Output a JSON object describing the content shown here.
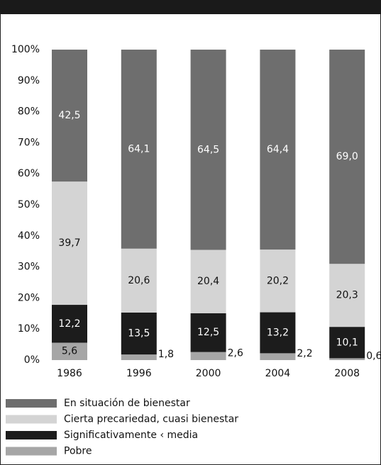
{
  "chart_data": {
    "type": "stacked_bar",
    "categories": [
      "1986",
      "1996",
      "2000",
      "2004",
      "2008"
    ],
    "series": [
      {
        "name": "Pobre",
        "color": "#a6a6a6",
        "values": [
          5.6,
          1.8,
          2.6,
          2.2,
          0.6
        ],
        "value_labels": [
          "5,6",
          "1,8",
          "2,6",
          "2,2",
          "0,6"
        ]
      },
      {
        "name": "Significativamente ‹ media",
        "color": "#1c1c1c",
        "values": [
          12.2,
          13.5,
          12.5,
          13.2,
          10.1
        ],
        "value_labels": [
          "12,2",
          "13,5",
          "12,5",
          "13,2",
          "10,1"
        ]
      },
      {
        "name": "Cierta precariedad, cuasi bienestar",
        "color": "#d4d4d4",
        "values": [
          39.7,
          20.6,
          20.4,
          20.2,
          20.3
        ],
        "value_labels": [
          "39,7",
          "20,6",
          "20,4",
          "20,2",
          "20,3"
        ]
      },
      {
        "name": "En situación de bienestar",
        "color": "#6e6e6e",
        "values": [
          42.5,
          64.1,
          64.5,
          64.4,
          69.0
        ],
        "value_labels": [
          "42,5",
          "64,1",
          "64,5",
          "64,4",
          "69,0"
        ]
      }
    ],
    "ylim": [
      0,
      100
    ],
    "yticks": [
      {
        "value": 0,
        "label": "0%"
      },
      {
        "value": 10,
        "label": "10%"
      },
      {
        "value": 20,
        "label": "20%"
      },
      {
        "value": 30,
        "label": "30%"
      },
      {
        "value": 40,
        "label": "40%"
      },
      {
        "value": 50,
        "label": "50%"
      },
      {
        "value": 60,
        "label": "60%"
      },
      {
        "value": 70,
        "label": "70%"
      },
      {
        "value": 80,
        "label": "80%"
      },
      {
        "value": 90,
        "label": "90%"
      },
      {
        "value": 100,
        "label": "100%"
      }
    ],
    "legend": "bottom-left"
  }
}
